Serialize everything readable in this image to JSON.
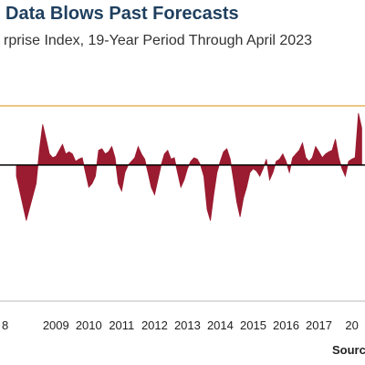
{
  "chart_data": {
    "type": "area",
    "title": "Data Blows Past Forecasts",
    "subtitle": "rprise Index, 19-Year Period Through April 2023",
    "source_label": "Sourc",
    "x_tick_labels": [
      "8",
      "2009",
      "2010",
      "2011",
      "2012",
      "2013",
      "2014",
      "2015",
      "2016",
      "2017",
      "20"
    ],
    "x": [
      2008.3,
      2008.45,
      2008.6,
      2008.75,
      2008.9,
      2009.0,
      2009.1,
      2009.2,
      2009.3,
      2009.4,
      2009.5,
      2009.6,
      2009.7,
      2009.8,
      2009.9,
      2010.0,
      2010.1,
      2010.2,
      2010.3,
      2010.4,
      2010.5,
      2010.6,
      2010.7,
      2010.8,
      2010.9,
      2011.0,
      2011.1,
      2011.2,
      2011.3,
      2011.4,
      2011.5,
      2011.6,
      2011.7,
      2011.8,
      2011.9,
      2012.0,
      2012.1,
      2012.2,
      2012.3,
      2012.4,
      2012.5,
      2012.6,
      2012.7,
      2012.8,
      2012.9,
      2013.0,
      2013.1,
      2013.2,
      2013.3,
      2013.4,
      2013.5,
      2013.6,
      2013.7,
      2013.8,
      2013.9,
      2014.0,
      2014.1,
      2014.2,
      2014.3,
      2014.4,
      2014.5,
      2014.6,
      2014.7,
      2014.8,
      2014.9,
      2015.0,
      2015.1,
      2015.2,
      2015.3,
      2015.4,
      2015.5,
      2015.6,
      2015.7,
      2015.8,
      2015.9,
      2016.0,
      2016.1,
      2016.2,
      2016.3,
      2016.4,
      2016.5,
      2016.6,
      2016.7,
      2016.8,
      2016.9,
      2017.0,
      2017.1,
      2017.2,
      2017.3,
      2017.4,
      2017.5,
      2017.6,
      2017.7,
      2017.8,
      2017.9,
      2018.0,
      2018.1,
      2018.2,
      2018.3,
      2018.4,
      2018.5,
      2018.6,
      2018.7,
      2018.8
    ],
    "values": [
      -15,
      -45,
      -75,
      -50,
      -25,
      20,
      55,
      35,
      15,
      10,
      12,
      20,
      28,
      15,
      18,
      15,
      5,
      8,
      10,
      -10,
      -30,
      -25,
      -15,
      20,
      22,
      15,
      18,
      25,
      10,
      -25,
      -35,
      -10,
      0,
      5,
      10,
      25,
      15,
      8,
      -10,
      -30,
      -40,
      -20,
      0,
      15,
      20,
      8,
      10,
      -10,
      -30,
      -20,
      -5,
      5,
      10,
      8,
      0,
      -15,
      -60,
      -75,
      -40,
      -10,
      5,
      18,
      22,
      8,
      -20,
      -50,
      -70,
      -45,
      -30,
      -10,
      -5,
      -8,
      -15,
      -5,
      8,
      -20,
      -10,
      5,
      8,
      15,
      5,
      -10,
      10,
      15,
      20,
      30,
      10,
      5,
      10,
      25,
      18,
      10,
      15,
      18,
      20,
      35,
      10,
      -5,
      -15,
      5,
      8,
      10,
      70,
      50
    ],
    "ylim": [
      -100,
      80
    ],
    "xlim": [
      2007.8,
      2018.9
    ],
    "zero_line": 0,
    "reference_line": 80,
    "grid": false,
    "colors": {
      "area": "#9b1b30",
      "reference_line": "#e6b45a",
      "zero_line": "#000000",
      "axis": "#bbbbbb",
      "title": "#1f3f5f"
    }
  }
}
